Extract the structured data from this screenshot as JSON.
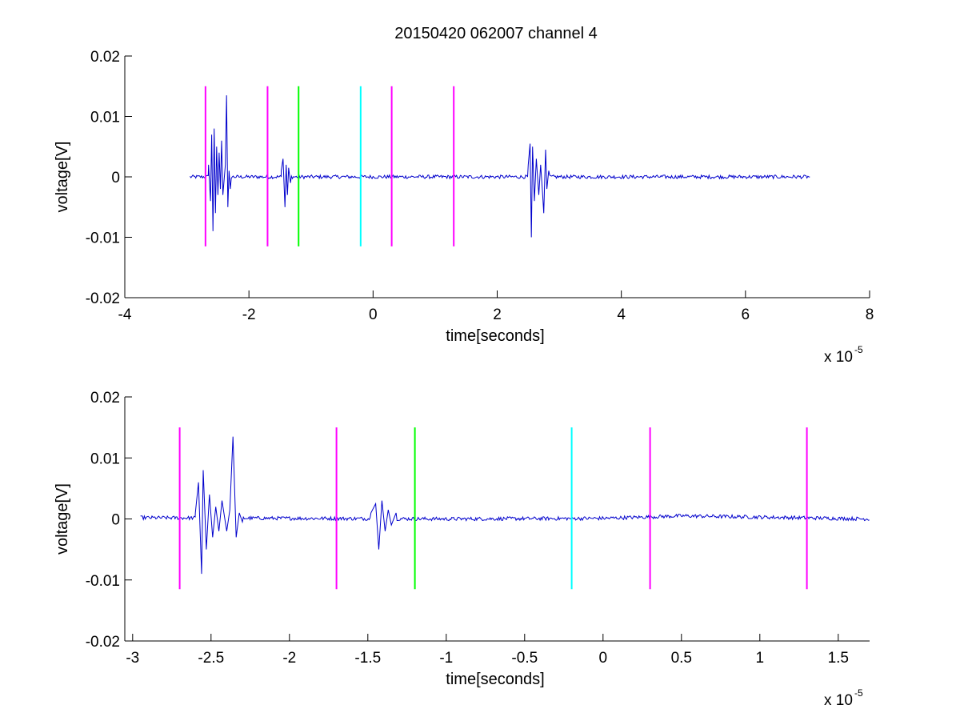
{
  "chart_data": [
    {
      "type": "line",
      "title": "20150420 062007 channel 4",
      "xlabel": "time[seconds]",
      "ylabel": "voltage[V]",
      "x_multiplier_base": "x 10",
      "x_multiplier_exp": "-5",
      "xlim": [
        -4,
        8
      ],
      "ylim": [
        -0.02,
        0.02
      ],
      "x_ticks": [
        -4,
        -2,
        0,
        2,
        4,
        6,
        8
      ],
      "x_tick_labels": [
        "-4",
        "-2",
        "0",
        "2",
        "4",
        "6",
        "8"
      ],
      "y_ticks": [
        -0.02,
        -0.01,
        0,
        0.01,
        0.02
      ],
      "y_tick_labels": [
        "-0.02",
        "-0.01",
        "0",
        "0.01",
        "0.02"
      ],
      "grid": false,
      "signal": {
        "color": "#0000cc",
        "x_start": -2.95,
        "x_end": 7.05,
        "baseline": 0,
        "noise_amplitude": 0.0003,
        "bursts": [
          {
            "points": [
              [
                -2.65,
                0.002
              ],
              [
                -2.62,
                -0.004
              ],
              [
                -2.6,
                0.007
              ],
              [
                -2.58,
                -0.009
              ],
              [
                -2.56,
                0.008
              ],
              [
                -2.54,
                -0.006
              ],
              [
                -2.52,
                0.005
              ],
              [
                -2.5,
                -0.003
              ],
              [
                -2.48,
                0.004
              ],
              [
                -2.46,
                -0.002
              ],
              [
                -2.44,
                0.006
              ],
              [
                -2.42,
                -0.003
              ],
              [
                -2.38,
                0.002
              ],
              [
                -2.36,
                0.0135
              ],
              [
                -2.34,
                -0.005
              ],
              [
                -2.32,
                0.001
              ],
              [
                -2.3,
                -0.002
              ]
            ]
          },
          {
            "points": [
              [
                -1.48,
                0.001
              ],
              [
                -1.45,
                0.003
              ],
              [
                -1.42,
                -0.005
              ],
              [
                -1.4,
                0.002
              ],
              [
                -1.38,
                -0.003
              ],
              [
                -1.36,
                0.0015
              ],
              [
                -1.33,
                -0.001
              ]
            ]
          },
          {
            "points": [
              [
                2.5,
                0.002
              ],
              [
                2.53,
                0.0055
              ],
              [
                2.55,
                -0.01
              ],
              [
                2.57,
                0.005
              ],
              [
                2.6,
                -0.004
              ],
              [
                2.63,
                0.003
              ],
              [
                2.67,
                -0.003
              ],
              [
                2.7,
                0.002
              ],
              [
                2.73,
                -0.0025
              ],
              [
                2.75,
                -0.006
              ],
              [
                2.78,
                0.0045
              ],
              [
                2.8,
                -0.002
              ],
              [
                2.83,
                0.001
              ]
            ]
          }
        ]
      },
      "markers": [
        {
          "x": -2.7,
          "color": "#ff00ff",
          "y_top": 0.015,
          "y_bottom": -0.0115
        },
        {
          "x": -1.7,
          "color": "#ff00ff",
          "y_top": 0.015,
          "y_bottom": -0.0115
        },
        {
          "x": -1.2,
          "color": "#00ff00",
          "y_top": 0.015,
          "y_bottom": -0.0115
        },
        {
          "x": -0.2,
          "color": "#00ffff",
          "y_top": 0.015,
          "y_bottom": -0.0115
        },
        {
          "x": 0.3,
          "color": "#ff00ff",
          "y_top": 0.015,
          "y_bottom": -0.0115
        },
        {
          "x": 1.3,
          "color": "#ff00ff",
          "y_top": 0.015,
          "y_bottom": -0.0115
        }
      ]
    },
    {
      "type": "line",
      "title": "",
      "xlabel": "time[seconds]",
      "ylabel": "voltage[V]",
      "x_multiplier_base": "x 10",
      "x_multiplier_exp": "-5",
      "xlim": [
        -3.05,
        1.7
      ],
      "ylim": [
        -0.02,
        0.02
      ],
      "x_ticks": [
        -3,
        -2.5,
        -2,
        -1.5,
        -1,
        -0.5,
        0,
        0.5,
        1,
        1.5
      ],
      "x_tick_labels": [
        "-3",
        "-2.5",
        "-2",
        "-1.5",
        "-1",
        "-0.5",
        "0",
        "0.5",
        "1",
        "1.5"
      ],
      "y_ticks": [
        -0.02,
        -0.01,
        0,
        0.01,
        0.02
      ],
      "y_tick_labels": [
        "-0.02",
        "-0.01",
        "0",
        "0.01",
        "0.02"
      ],
      "grid": false,
      "signal": {
        "color": "#0000cc",
        "x_start": -2.95,
        "x_end": 1.7,
        "baseline": 0,
        "noise_amplitude": 0.0003,
        "bursts": [
          {
            "points": [
              [
                -2.6,
                0.001
              ],
              [
                -2.58,
                0.006
              ],
              [
                -2.56,
                -0.009
              ],
              [
                -2.55,
                0.008
              ],
              [
                -2.53,
                -0.005
              ],
              [
                -2.51,
                0.004
              ],
              [
                -2.49,
                -0.003
              ],
              [
                -2.47,
                0.002
              ],
              [
                -2.45,
                -0.002
              ],
              [
                -2.43,
                0.003
              ],
              [
                -2.4,
                -0.002
              ],
              [
                -2.38,
                0.0015
              ],
              [
                -2.36,
                0.0135
              ],
              [
                -2.34,
                -0.003
              ],
              [
                -2.32,
                0.001
              ],
              [
                -2.3,
                -0.0005
              ]
            ]
          },
          {
            "points": [
              [
                -1.48,
                0.001
              ],
              [
                -1.45,
                0.0025
              ],
              [
                -1.43,
                -0.005
              ],
              [
                -1.41,
                0.003
              ],
              [
                -1.39,
                -0.002
              ],
              [
                -1.37,
                0.0015
              ],
              [
                -1.35,
                -0.001
              ],
              [
                -1.32,
                0.001
              ]
            ]
          }
        ],
        "drift": [
          [
            -2.95,
            0.0002
          ],
          [
            -1.0,
            0.0
          ],
          [
            0.0,
            0.0001
          ],
          [
            0.5,
            0.0005
          ],
          [
            1.0,
            0.0003
          ],
          [
            1.7,
            0.0
          ]
        ]
      },
      "markers": [
        {
          "x": -2.7,
          "color": "#ff00ff",
          "y_top": 0.015,
          "y_bottom": -0.0115
        },
        {
          "x": -1.7,
          "color": "#ff00ff",
          "y_top": 0.015,
          "y_bottom": -0.0115
        },
        {
          "x": -1.2,
          "color": "#00ff00",
          "y_top": 0.015,
          "y_bottom": -0.0115
        },
        {
          "x": -0.2,
          "color": "#00ffff",
          "y_top": 0.015,
          "y_bottom": -0.0115
        },
        {
          "x": 0.3,
          "color": "#ff00ff",
          "y_top": 0.015,
          "y_bottom": -0.0115
        },
        {
          "x": 1.3,
          "color": "#ff00ff",
          "y_top": 0.015,
          "y_bottom": -0.0115
        }
      ]
    }
  ]
}
